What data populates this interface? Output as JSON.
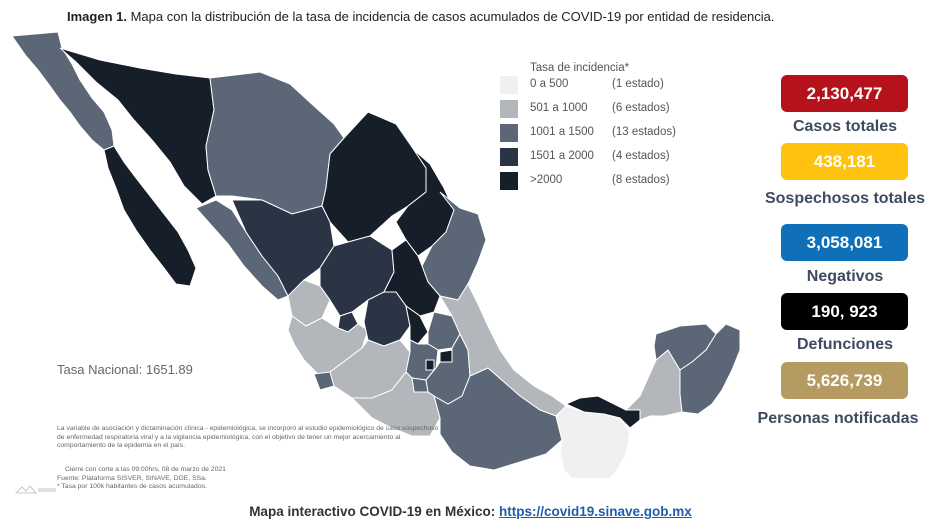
{
  "caption": {
    "prefix": "Imagen 1.",
    "text": " Mapa con la distribución de la tasa de incidencia de casos acumulados de COVID-19 por entidad de residencia."
  },
  "legend": {
    "title": "Tasa de incidencia*",
    "items": [
      {
        "range": "0 a   500",
        "count": "(1 estado)",
        "color": "#f0f0f0"
      },
      {
        "range": "501 a  1000",
        "count": "(6 estados)",
        "color": "#b3b6ba"
      },
      {
        "range": "1001 a  1500",
        "count": "(13 estados)",
        "color": "#5b6677"
      },
      {
        "range": "1501 a  2000",
        "count": "(4 estados)",
        "color": "#2a3445"
      },
      {
        "range": ">2000",
        "count": "(8 estados)",
        "color": "#161e2a"
      }
    ]
  },
  "tasa_nacional": "Tasa Nacional: 1651.89",
  "note": "La variable de asociación y dictaminación clínica - epidemiológica, se incorporó al estudio epidemiológico de caso sospechoso de enfermedad respiratoria viral y a la vigilancia epidemiológica, con el objetivo de tener un mejor acercamiento al comportamiento de la epidemia en el país.",
  "source": {
    "cierre": "Cierre con corte a las 09:00hrs, 08 de marzo de 2021",
    "fuente": "Fuente: Plataforma SISVER, SINAVE, DGE, SSa.",
    "tasa_note": "* Tasa por 100k habitantes de casos acumulados."
  },
  "stats": [
    {
      "value": "2,130,477",
      "label": "Casos totales",
      "color": "#b5121b"
    },
    {
      "value": "438,181",
      "label": "Sospechosos totales",
      "color": "#ffc20e"
    },
    {
      "value": "3,058,081",
      "label": "Negativos",
      "color": "#0f6fb8"
    },
    {
      "value": "190, 923",
      "label": "Defunciones",
      "color": "#000000"
    },
    {
      "value": "5,626,739",
      "label": "Personas notificadas",
      "color": "#b59a62"
    }
  ],
  "footer": {
    "text": "Mapa interactivo COVID-19 en México: ",
    "link": "https://covid19.sinave.gob.mx"
  },
  "map_colors": {
    "c0": "#f0f0f0",
    "c1": "#b3b6ba",
    "c2": "#5b6677",
    "c3": "#2a3445",
    "c4": "#161e2a",
    "border": "#ffffff"
  }
}
